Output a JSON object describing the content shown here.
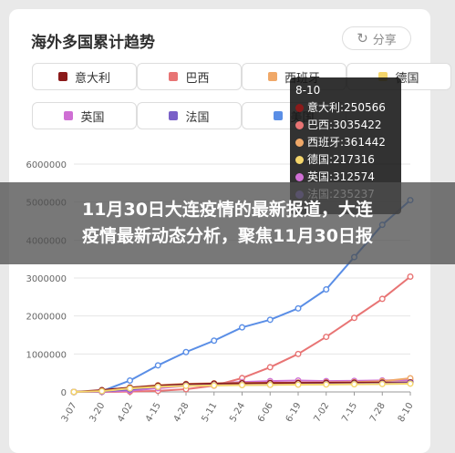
{
  "title": "海外多国累计趋势",
  "share_label": "分享",
  "share_icon": "refresh-share-icon",
  "banner_lines": [
    "11月30日大连疫情的最新报道，大连",
    "疫情最新动态分析，聚焦11月30日报"
  ],
  "legend": [
    {
      "name": "意大利",
      "color": "#8b1a1a"
    },
    {
      "name": "巴西",
      "color": "#e87474"
    },
    {
      "name": "西班牙",
      "color": "#f0a868"
    },
    {
      "name": "德国",
      "color": "#f5d66b"
    },
    {
      "name": "英国",
      "color": "#cf6fd4"
    },
    {
      "name": "法国",
      "color": "#7a60c8"
    },
    {
      "name": "美国",
      "color": "#5a8ee6"
    }
  ],
  "tooltip": {
    "title": "8-10",
    "rows": [
      {
        "text": "意大利:250566",
        "color": "#8b1a1a"
      },
      {
        "text": "巴西:3035422",
        "color": "#e87474"
      },
      {
        "text": "西班牙:361442",
        "color": "#f0a868"
      },
      {
        "text": "德国:217316",
        "color": "#f5d66b"
      },
      {
        "text": "英国:312574",
        "color": "#cf6fd4"
      },
      {
        "text": "法国:235237",
        "color": "#7a60c8"
      }
    ]
  },
  "chart_data": {
    "type": "line",
    "title": "海外多国累计趋势",
    "x": [
      "3-07",
      "3-20",
      "4-02",
      "4-15",
      "4-28",
      "5-11",
      "5-24",
      "6-06",
      "6-19",
      "7-02",
      "7-15",
      "7-28",
      "8-10"
    ],
    "y_ticks": [
      0,
      1000000,
      2000000,
      3000000,
      4000000,
      5000000,
      6000000
    ],
    "y_tick_labels": [
      "0",
      "1000000",
      "2000000",
      "3000000",
      "4000000",
      "5000000",
      "6000000"
    ],
    "ylim": [
      0,
      6000000
    ],
    "grid": true,
    "series": [
      {
        "name": "美国",
        "color": "#5a8ee6",
        "values": [
          0,
          20000,
          300000,
          700000,
          1050000,
          1350000,
          1700000,
          1900000,
          2200000,
          2700000,
          3550000,
          4400000,
          5050000
        ]
      },
      {
        "name": "巴西",
        "color": "#e87474",
        "values": [
          0,
          0,
          8000,
          28000,
          72000,
          165000,
          365000,
          650000,
          1000000,
          1450000,
          1950000,
          2450000,
          3035422
        ]
      },
      {
        "name": "英国",
        "color": "#cf6fd4",
        "values": [
          0,
          4000,
          34000,
          98000,
          160000,
          220000,
          260000,
          285000,
          300000,
          285000,
          292000,
          302000,
          312574
        ]
      },
      {
        "name": "西班牙",
        "color": "#f0a868",
        "values": [
          0,
          20000,
          112000,
          177000,
          212000,
          228000,
          236000,
          241000,
          246000,
          251000,
          259000,
          282000,
          361442
        ]
      },
      {
        "name": "意大利",
        "color": "#8b1a1a",
        "values": [
          0,
          47000,
          115000,
          165000,
          201000,
          219000,
          229000,
          234000,
          238000,
          241000,
          244000,
          247000,
          250566
        ]
      },
      {
        "name": "法国",
        "color": "#7a60c8",
        "values": [
          0,
          12000,
          64000,
          135000,
          169000,
          178000,
          183000,
          190000,
          197000,
          204000,
          210000,
          220000,
          235237
        ]
      },
      {
        "name": "德国",
        "color": "#f5d66b",
        "values": [
          0,
          20000,
          92000,
          134000,
          160000,
          172000,
          180000,
          186000,
          191000,
          196000,
          201000,
          208000,
          217316
        ]
      }
    ]
  }
}
